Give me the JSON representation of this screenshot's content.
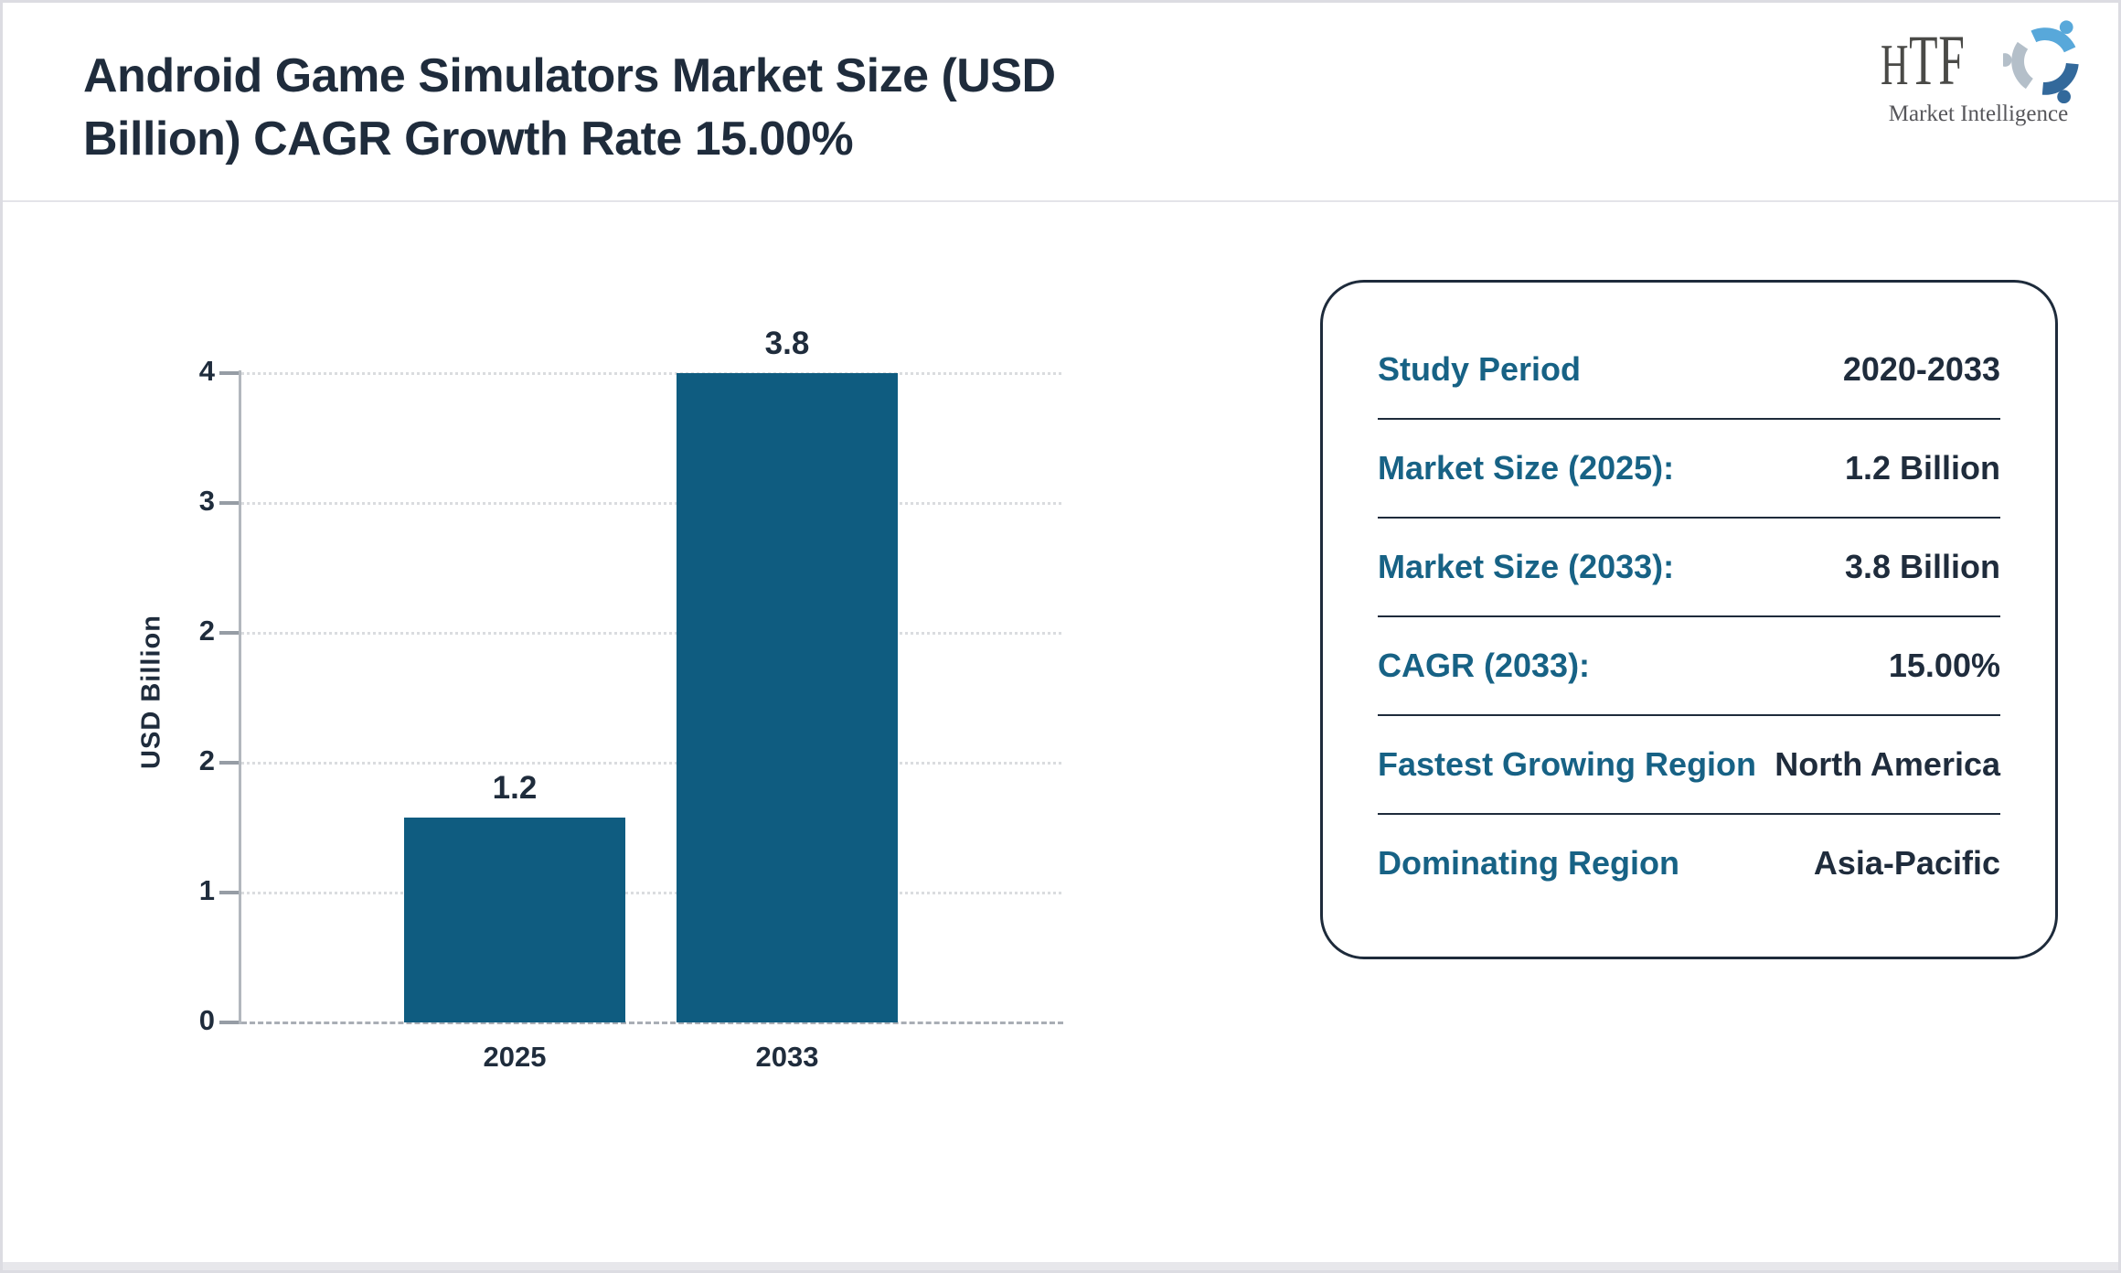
{
  "header": {
    "title": "Android Game Simulators Market Size (USD Billion) CAGR Growth Rate 15.00%",
    "logo": {
      "wordmark": "HTF",
      "tagline": "Market Intelligence"
    }
  },
  "chart_data": {
    "type": "bar",
    "title": "Android Game Simulators Market Size (USD Billion) CAGR Growth Rate 15.00%",
    "categories": [
      "2025",
      "2033"
    ],
    "values": [
      1.2,
      3.8
    ],
    "data_labels": [
      "1.2",
      "3.8"
    ],
    "xlabel": "",
    "ylabel": "USD Billion",
    "ylim": [
      0,
      3.8
    ],
    "y_tick_labels_top_to_bottom": [
      "4",
      "3",
      "2",
      "2",
      "1",
      "0"
    ],
    "grid": "horizontal dotted, dashed zero baseline",
    "legend": "none",
    "bar_color": "#0f5c80"
  },
  "panel": {
    "rows": [
      {
        "label": "Study Period",
        "value": "2020-2033"
      },
      {
        "label": "Market Size (2025):",
        "value": "1.2 Billion"
      },
      {
        "label": "Market Size (2033):",
        "value": "3.8 Billion"
      },
      {
        "label": "CAGR (2033):",
        "value": "15.00%"
      },
      {
        "label": "Fastest Growing Region",
        "value": "North America"
      },
      {
        "label": "Dominating Region",
        "value": "Asia-Pacific"
      }
    ]
  },
  "colors": {
    "bar": "#0f5c80",
    "title_text": "#1f2c3c",
    "panel_label": "#176285",
    "panel_value": "#1f2c3c",
    "panel_border": "#1e2b3b",
    "axis": "#b2b7bd",
    "tick": "#969da5",
    "gridline": "#dadcdf",
    "baseline": "#a9aeb5",
    "header_divider": "#e4e4e9",
    "logo_text": "#4a4a47",
    "logo_swirl_light_blue": "#58a8da",
    "logo_swirl_dark_blue": "#33699b",
    "logo_swirl_gray": "#b4bfc9"
  }
}
